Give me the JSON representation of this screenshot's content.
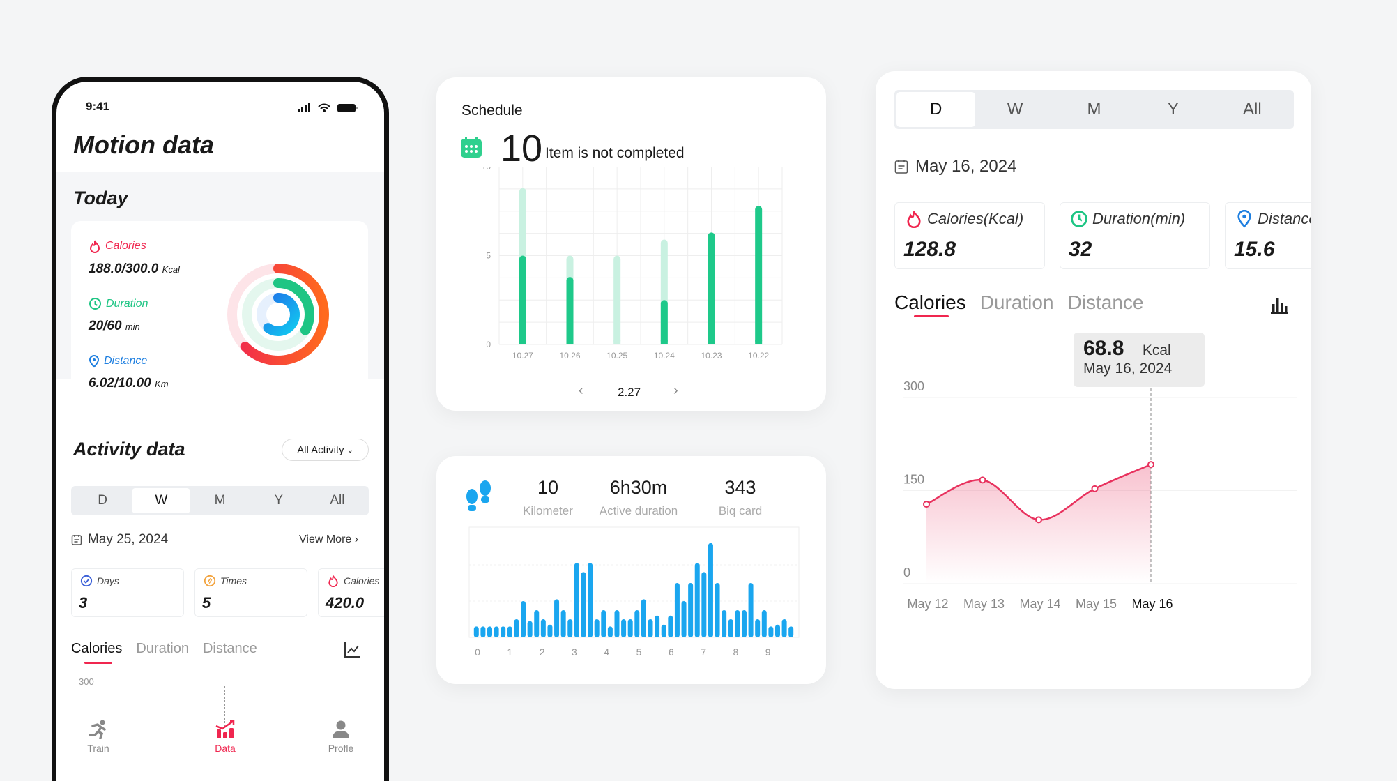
{
  "phone": {
    "status_time": "9:41",
    "title": "Motion data",
    "today": {
      "title": "Today",
      "calories": {
        "label": "Calories",
        "value": "188.0/300.0",
        "unit": "Kcal",
        "progress": 0.627,
        "color": "#f0264f"
      },
      "duration": {
        "label": "Duration",
        "value": "20/60",
        "unit": "min",
        "progress": 0.333,
        "color": "#1ec584"
      },
      "distance": {
        "label": "Distance",
        "value": "6.02/10.00",
        "unit": "Km",
        "progress": 0.602,
        "color": "#1e90f0"
      }
    },
    "activity": {
      "title": "Activity data",
      "filter": "All Activity",
      "periods": [
        "D",
        "W",
        "M",
        "Y",
        "All"
      ],
      "selected_period": "W",
      "date": "May 25,  2024",
      "view_more": "View More",
      "stats": [
        {
          "label": "Days",
          "value": "3"
        },
        {
          "label": "Times",
          "value": "5"
        },
        {
          "label": "Calories",
          "value": "420.0"
        }
      ],
      "tabs": [
        "Calories",
        "Duration",
        "Distance"
      ],
      "selected_tab": "Calories",
      "y_tick": "300"
    },
    "nav": [
      {
        "label": "Train",
        "icon": "running-icon"
      },
      {
        "label": "Data",
        "icon": "chart-icon",
        "active": true
      },
      {
        "label": "Profle",
        "icon": "user-icon"
      }
    ],
    "accent": "#f0264f"
  },
  "schedule": {
    "title": "Schedule",
    "count": "10",
    "count_label": "Item is not completed",
    "page": "2.27"
  },
  "activity_card": {
    "stats": [
      {
        "value": "10",
        "label": "Kilometer"
      },
      {
        "value": "6h30m",
        "label": "Active duration"
      },
      {
        "value": "343",
        "label": "Biq card"
      }
    ]
  },
  "detail": {
    "periods": [
      "D",
      "W",
      "M",
      "Y",
      "All"
    ],
    "selected_period": "D",
    "date": "May 16, 2024",
    "stats": [
      {
        "label": "Calories(Kcal)",
        "value": "128.8"
      },
      {
        "label": "Duration(min)",
        "value": "32"
      },
      {
        "label": "Distance",
        "value": "15.6"
      }
    ],
    "tabs": [
      "Calories",
      "Duration",
      "Distance"
    ],
    "selected_tab": "Calories",
    "tooltip": {
      "value": "68.8",
      "unit": "Kcal",
      "date": "May 16, 2024"
    }
  },
  "chart_data": [
    {
      "type": "bar",
      "title": "",
      "categories": [
        "10.27",
        "10.26",
        "10.25",
        "10.24",
        "10.23",
        "10.22"
      ],
      "ylim": [
        0,
        10
      ],
      "yticks": [
        "0",
        "5",
        "10"
      ],
      "series": [
        {
          "values": [
            5,
            3.8,
            0,
            2.5,
            6.3,
            7.8
          ],
          "color": "#1ec98a"
        },
        {
          "values": [
            8.8,
            5,
            5,
            5.9,
            0,
            0
          ],
          "color": "#c9f1e1"
        }
      ],
      "grid": true
    },
    {
      "type": "bar",
      "title": "",
      "xticks": [
        "0",
        "1",
        "2",
        "3",
        "4",
        "5",
        "6",
        "7",
        "8",
        "9"
      ],
      "color": "#1aa6ef",
      "grid": true,
      "values": [
        0.6,
        0.6,
        0.6,
        0.6,
        0.6,
        0.6,
        1,
        2,
        0.9,
        1.5,
        1,
        0.7,
        2.1,
        1.5,
        1,
        4.1,
        3.6,
        4.1,
        1,
        1.5,
        0.6,
        1.5,
        1,
        1,
        1.5,
        2.1,
        1,
        1.2,
        0.7,
        1.2,
        3,
        2,
        3,
        4.1,
        3.6,
        5.2,
        3,
        1.5,
        1,
        1.5,
        1.5,
        3,
        1,
        1.5,
        0.6,
        0.7,
        1,
        0.6
      ]
    },
    {
      "type": "area",
      "title": "",
      "categories": [
        "May 12",
        "May 13",
        "May 14",
        "May 15",
        "May 16"
      ],
      "values": [
        128,
        167,
        103,
        153,
        192
      ],
      "ylim": [
        0,
        300
      ],
      "yticks": [
        "0",
        "150",
        "300"
      ],
      "color": "#e8325e",
      "highlight": "May 16"
    }
  ]
}
